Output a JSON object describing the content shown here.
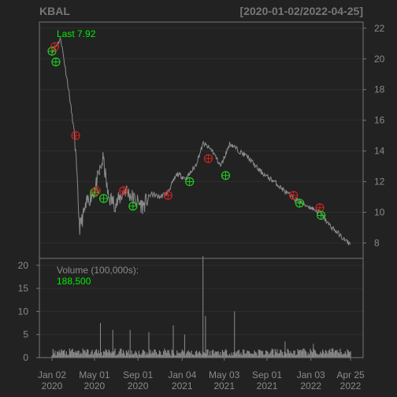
{
  "header": {
    "symbol": "KBAL",
    "date_range": "[2020-01-02/2022-04-25]"
  },
  "colors": {
    "background": "#222222",
    "panel_border": "#777777",
    "grid": "#2e2e2e",
    "price_line": "#8c8c8c",
    "volume_bars": "#8c8c8c",
    "label_green": "#00ee00",
    "label_gray": "#8a8a8a",
    "buy_marker": "#22cc22",
    "sell_marker": "#cc2222"
  },
  "chart_data": [
    {
      "type": "line",
      "panel": "price",
      "title": "",
      "last_label": "Last 7.92",
      "y_ticks": [
        8,
        10,
        12,
        14,
        16,
        18,
        20,
        22
      ],
      "ylim": [
        7,
        22.4
      ],
      "y_axis_side": "right",
      "grid": true,
      "x_dates": [
        "2020-01-02",
        "2020-01-27",
        "2020-02-18",
        "2020-03-06",
        "2020-03-20",
        "2020-04-13",
        "2020-05-01",
        "2020-05-26",
        "2020-06-09",
        "2020-07-01",
        "2020-07-27",
        "2020-08-24",
        "2020-09-15",
        "2020-10-08",
        "2020-11-02",
        "2020-11-24",
        "2020-12-21",
        "2021-01-15",
        "2021-02-10",
        "2021-03-05",
        "2021-03-31",
        "2021-04-23",
        "2021-05-19",
        "2021-06-14",
        "2021-07-09",
        "2021-08-03",
        "2021-08-27",
        "2021-09-22",
        "2021-10-15",
        "2021-11-10",
        "2021-12-08",
        "2022-01-04",
        "2022-01-28",
        "2022-02-23",
        "2022-03-18",
        "2022-04-08",
        "2022-04-25"
      ],
      "close": [
        20.5,
        21.3,
        18.0,
        15.0,
        9.0,
        10.8,
        11.4,
        13.5,
        11.0,
        10.5,
        11.5,
        10.8,
        10.4,
        11.2,
        11.0,
        11.3,
        12.5,
        12.2,
        13.0,
        14.5,
        14.0,
        13.0,
        14.5,
        14.0,
        13.6,
        12.9,
        12.4,
        12.0,
        11.5,
        11.0,
        10.6,
        10.3,
        10.0,
        9.2,
        8.7,
        8.2,
        7.92
      ],
      "markers": [
        {
          "date": "2020-01-02",
          "price": 20.5,
          "side": "buy"
        },
        {
          "date": "2020-01-10",
          "price": 20.8,
          "side": "sell"
        },
        {
          "date": "2020-01-13",
          "price": 19.8,
          "side": "buy"
        },
        {
          "date": "2020-03-09",
          "price": 15.0,
          "side": "sell"
        },
        {
          "date": "2020-05-01",
          "price": 11.3,
          "side": "buy"
        },
        {
          "date": "2020-05-06",
          "price": 11.4,
          "side": "sell"
        },
        {
          "date": "2020-05-27",
          "price": 10.9,
          "side": "buy"
        },
        {
          "date": "2020-07-22",
          "price": 11.4,
          "side": "sell"
        },
        {
          "date": "2020-08-18",
          "price": 10.4,
          "side": "buy"
        },
        {
          "date": "2020-11-25",
          "price": 11.1,
          "side": "sell"
        },
        {
          "date": "2021-01-25",
          "price": 12.0,
          "side": "buy"
        },
        {
          "date": "2021-03-19",
          "price": 13.5,
          "side": "sell"
        },
        {
          "date": "2021-05-07",
          "price": 12.4,
          "side": "buy"
        },
        {
          "date": "2021-11-15",
          "price": 11.1,
          "side": "sell"
        },
        {
          "date": "2021-12-02",
          "price": 10.6,
          "side": "buy"
        },
        {
          "date": "2022-01-28",
          "price": 10.3,
          "side": "sell"
        },
        {
          "date": "2022-02-01",
          "price": 9.8,
          "side": "buy"
        }
      ]
    },
    {
      "type": "bar",
      "panel": "volume",
      "label": "Volume (100,000s):",
      "last_value_label": "188,500",
      "y_ticks": [
        0,
        5,
        10,
        15,
        20
      ],
      "ylim": [
        0,
        21.5
      ],
      "y_axis_side": "left",
      "spikes": [
        {
          "date": "2020-05-18",
          "value": 7.5
        },
        {
          "date": "2020-06-22",
          "value": 6.0
        },
        {
          "date": "2020-08-10",
          "value": 6.0
        },
        {
          "date": "2020-10-02",
          "value": 5.5
        },
        {
          "date": "2020-12-10",
          "value": 7.0
        },
        {
          "date": "2021-01-11",
          "value": 5.0
        },
        {
          "date": "2021-03-04",
          "value": 22.0
        },
        {
          "date": "2021-03-11",
          "value": 9.0
        },
        {
          "date": "2021-06-01",
          "value": 10.0
        },
        {
          "date": "2021-10-22",
          "value": 3.5
        },
        {
          "date": "2022-01-10",
          "value": 3.0
        }
      ]
    }
  ],
  "x_axis": {
    "labels": [
      {
        "date": "2020-01-02",
        "line1": "Jan 02",
        "line2": "2020"
      },
      {
        "date": "2020-05-01",
        "line1": "May 01",
        "line2": "2020"
      },
      {
        "date": "2020-09-01",
        "line1": "Sep 01",
        "line2": "2020"
      },
      {
        "date": "2021-01-04",
        "line1": "Jan 04",
        "line2": "2021"
      },
      {
        "date": "2021-05-03",
        "line1": "May 03",
        "line2": "2021"
      },
      {
        "date": "2021-09-01",
        "line1": "Sep 01",
        "line2": "2021"
      },
      {
        "date": "2022-01-03",
        "line1": "Jan 03",
        "line2": "2022"
      },
      {
        "date": "2022-04-25",
        "line1": "Apr 25",
        "line2": "2022"
      }
    ]
  }
}
